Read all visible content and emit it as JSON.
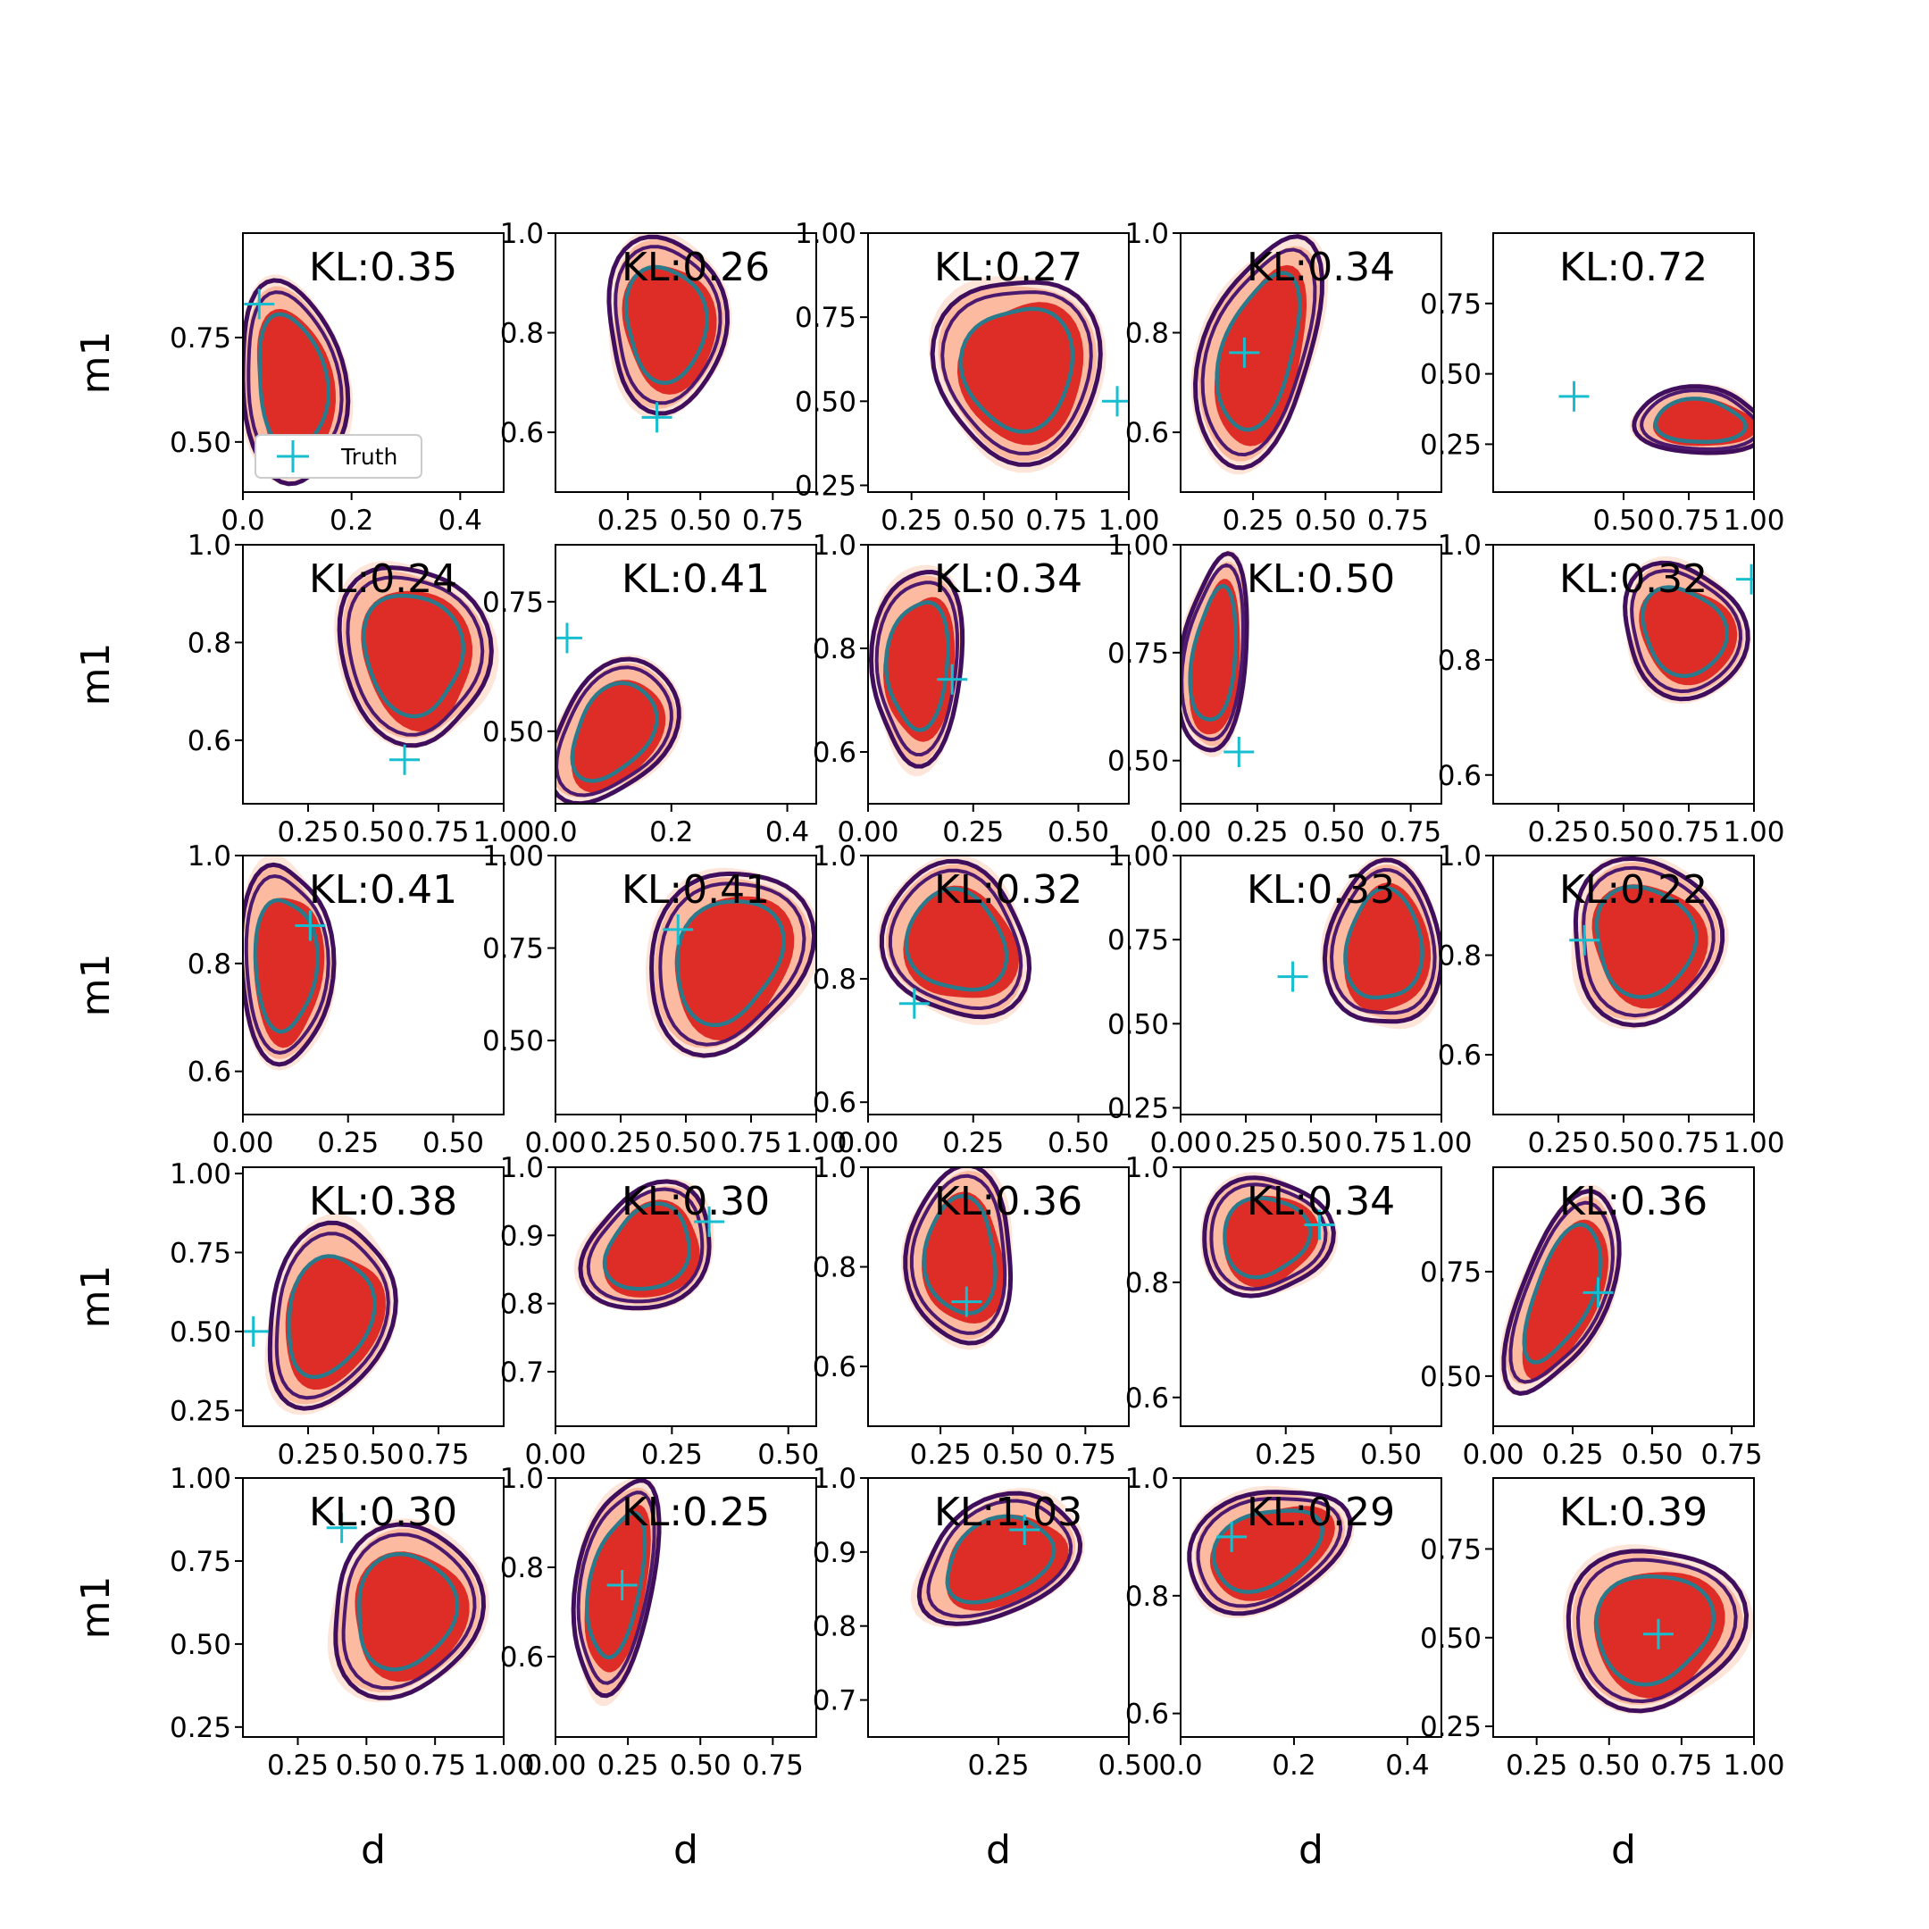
{
  "legend": {
    "label": "Truth"
  },
  "chart_data": {
    "type": "contour-grid",
    "rows": 5,
    "cols": 5,
    "xlabel": "d",
    "ylabel": "m1",
    "colors": {
      "fill_outer": "#fee5d9",
      "fill_mid": "#fcbba1",
      "fill_inner": "#de2d26",
      "contour_outer": "#3f0f5e",
      "contour_mid": "#4b1a6f",
      "contour_inner": "#2b7a8c",
      "truth": "#17becf"
    },
    "panels": [
      {
        "kl": "KL:0.35",
        "xlim": [
          0.0,
          0.48
        ],
        "ylim": [
          0.38,
          1.0
        ],
        "xticks": [
          "0.0",
          "0.2",
          "0.4"
        ],
        "yticks": [
          "0.50",
          "0.75"
        ],
        "truth": [
          0.03,
          0.83
        ],
        "center": [
          0.09,
          0.64
        ],
        "spread": [
          0.09,
          0.23
        ],
        "rot": -10
      },
      {
        "kl": "KL:0.26",
        "xlim": [
          0.0,
          0.9
        ],
        "ylim": [
          0.48,
          1.0
        ],
        "xticks": [
          "0.25",
          "0.50",
          "0.75"
        ],
        "yticks": [
          "0.6",
          "0.8",
          "1.0"
        ],
        "truth": [
          0.35,
          0.63
        ],
        "center": [
          0.38,
          0.82
        ],
        "spread": [
          0.2,
          0.16
        ],
        "rot": 0
      },
      {
        "kl": "KL:0.27",
        "xlim": [
          0.1,
          1.0
        ],
        "ylim": [
          0.23,
          1.0
        ],
        "xticks": [
          "0.25",
          "0.50",
          "0.75",
          "1.00"
        ],
        "yticks": [
          "0.25",
          "0.50",
          "0.75",
          "1.00"
        ],
        "truth": [
          0.96,
          0.5
        ],
        "center": [
          0.62,
          0.6
        ],
        "spread": [
          0.26,
          0.27
        ],
        "rot": 0
      },
      {
        "kl": "KL:0.34",
        "xlim": [
          0.0,
          0.9
        ],
        "ylim": [
          0.48,
          1.0
        ],
        "xticks": [
          "0.25",
          "0.50",
          "0.75"
        ],
        "yticks": [
          "0.6",
          "0.8",
          "1.0"
        ],
        "truth": [
          0.22,
          0.76
        ],
        "center": [
          0.27,
          0.76
        ],
        "spread": [
          0.18,
          0.22
        ],
        "rot": 15
      },
      {
        "kl": "KL:0.72",
        "xlim": [
          0.0,
          1.0
        ],
        "ylim": [
          0.08,
          1.0
        ],
        "xticks": [
          "0.50",
          "0.75",
          "1.00"
        ],
        "yticks": [
          "0.25",
          "0.50",
          "0.75"
        ],
        "truth": [
          0.31,
          0.42
        ],
        "center": [
          0.79,
          0.33
        ],
        "spread": [
          0.24,
          0.11
        ],
        "rot": 0
      },
      {
        "kl": "KL:0.24",
        "xlim": [
          0.0,
          1.0
        ],
        "ylim": [
          0.47,
          1.0
        ],
        "xticks": [
          "0.25",
          "0.50",
          "0.75",
          "1.00"
        ],
        "yticks": [
          "0.6",
          "0.8",
          "1.0"
        ],
        "truth": [
          0.62,
          0.56
        ],
        "center": [
          0.65,
          0.78
        ],
        "spread": [
          0.26,
          0.18
        ],
        "rot": -20
      },
      {
        "kl": "KL:0.41",
        "xlim": [
          0.0,
          0.45
        ],
        "ylim": [
          0.36,
          0.86
        ],
        "xticks": [
          "0.0",
          "0.2",
          "0.4"
        ],
        "yticks": [
          "0.50",
          "0.75"
        ],
        "truth": [
          0.02,
          0.68
        ],
        "center": [
          0.1,
          0.5
        ],
        "spread": [
          0.09,
          0.14
        ],
        "rot": 35
      },
      {
        "kl": "KL:0.34",
        "xlim": [
          0.0,
          0.62
        ],
        "ylim": [
          0.5,
          1.0
        ],
        "xticks": [
          "0.00",
          "0.25",
          "0.50"
        ],
        "yticks": [
          "0.6",
          "0.8",
          "1.0"
        ],
        "truth": [
          0.2,
          0.74
        ],
        "center": [
          0.12,
          0.77
        ],
        "spread": [
          0.1,
          0.18
        ],
        "rot": 5
      },
      {
        "kl": "KL:0.50",
        "xlim": [
          0.0,
          0.85
        ],
        "ylim": [
          0.4,
          1.0
        ],
        "xticks": [
          "0.00",
          "0.25",
          "0.50",
          "0.75"
        ],
        "yticks": [
          "0.50",
          "0.75",
          "1.00"
        ],
        "truth": [
          0.19,
          0.52
        ],
        "center": [
          0.11,
          0.74
        ],
        "spread": [
          0.1,
          0.22
        ],
        "rot": 5
      },
      {
        "kl": "KL:0.32",
        "xlim": [
          0.0,
          1.0
        ],
        "ylim": [
          0.55,
          1.0
        ],
        "xticks": [
          "0.25",
          "0.50",
          "0.75",
          "1.00"
        ],
        "yticks": [
          "0.6",
          "0.8",
          "1.0"
        ],
        "truth": [
          0.99,
          0.94
        ],
        "center": [
          0.73,
          0.85
        ],
        "spread": [
          0.22,
          0.11
        ],
        "rot": -25
      },
      {
        "kl": "KL:0.41",
        "xlim": [
          0.0,
          0.62
        ],
        "ylim": [
          0.52,
          1.0
        ],
        "xticks": [
          "0.00",
          "0.25",
          "0.50"
        ],
        "yticks": [
          "0.6",
          "0.8",
          "1.0"
        ],
        "truth": [
          0.16,
          0.87
        ],
        "center": [
          0.1,
          0.8
        ],
        "spread": [
          0.1,
          0.18
        ],
        "rot": 0
      },
      {
        "kl": "KL:0.41",
        "xlim": [
          0.0,
          1.0
        ],
        "ylim": [
          0.3,
          1.0
        ],
        "xticks": [
          "0.00",
          "0.25",
          "0.50",
          "0.75",
          "1.00"
        ],
        "yticks": [
          "0.50",
          "0.75",
          "1.00"
        ],
        "truth": [
          0.47,
          0.8
        ],
        "center": [
          0.66,
          0.72
        ],
        "spread": [
          0.28,
          0.24
        ],
        "rot": 20
      },
      {
        "kl": "KL:0.32",
        "xlim": [
          0.0,
          0.62
        ],
        "ylim": [
          0.58,
          1.0
        ],
        "xticks": [
          "0.00",
          "0.25",
          "0.50"
        ],
        "yticks": [
          "0.6",
          "0.8",
          "1.0"
        ],
        "truth": [
          0.11,
          0.76
        ],
        "center": [
          0.21,
          0.86
        ],
        "spread": [
          0.16,
          0.12
        ],
        "rot": -20
      },
      {
        "kl": "KL:0.33",
        "xlim": [
          0.0,
          1.0
        ],
        "ylim": [
          0.23,
          1.0
        ],
        "xticks": [
          "0.00",
          "0.25",
          "0.50",
          "0.75",
          "1.00"
        ],
        "yticks": [
          "0.25",
          "0.50",
          "0.75",
          "1.00"
        ],
        "truth": [
          0.43,
          0.64
        ],
        "center": [
          0.78,
          0.73
        ],
        "spread": [
          0.2,
          0.24
        ],
        "rot": 0
      },
      {
        "kl": "KL:0.22",
        "xlim": [
          0.0,
          1.0
        ],
        "ylim": [
          0.48,
          1.0
        ],
        "xticks": [
          "0.25",
          "0.50",
          "0.75",
          "1.00"
        ],
        "yticks": [
          "0.6",
          "0.8",
          "1.0"
        ],
        "truth": [
          0.35,
          0.83
        ],
        "center": [
          0.58,
          0.83
        ],
        "spread": [
          0.28,
          0.15
        ],
        "rot": -15
      },
      {
        "kl": "KL:0.38",
        "xlim": [
          0.0,
          1.0
        ],
        "ylim": [
          0.2,
          1.02
        ],
        "xticks": [
          "0.25",
          "0.50",
          "0.75"
        ],
        "yticks": [
          "0.25",
          "0.50",
          "0.75",
          "1.00"
        ],
        "truth": [
          0.04,
          0.5
        ],
        "center": [
          0.33,
          0.55
        ],
        "spread": [
          0.22,
          0.28
        ],
        "rot": 20
      },
      {
        "kl": "KL:0.30",
        "xlim": [
          0.0,
          0.56
        ],
        "ylim": [
          0.62,
          1.0
        ],
        "xticks": [
          "0.00",
          "0.25",
          "0.50"
        ],
        "yticks": [
          "0.7",
          "0.8",
          "0.9",
          "1.0"
        ],
        "truth": [
          0.33,
          0.92
        ],
        "center": [
          0.2,
          0.88
        ],
        "spread": [
          0.14,
          0.08
        ],
        "rot": -35
      },
      {
        "kl": "KL:0.36",
        "xlim": [
          0.0,
          0.9
        ],
        "ylim": [
          0.48,
          1.0
        ],
        "xticks": [
          "0.25",
          "0.50",
          "0.75"
        ],
        "yticks": [
          "0.6",
          "0.8",
          "1.0"
        ],
        "truth": [
          0.34,
          0.73
        ],
        "center": [
          0.32,
          0.82
        ],
        "spread": [
          0.18,
          0.16
        ],
        "rot": 0
      },
      {
        "kl": "KL:0.34",
        "xlim": [
          0.0,
          0.62
        ],
        "ylim": [
          0.55,
          1.0
        ],
        "xticks": [
          "0.25",
          "0.50"
        ],
        "yticks": [
          "0.6",
          "0.8",
          "1.0"
        ],
        "truth": [
          0.33,
          0.9
        ],
        "center": [
          0.2,
          0.88
        ],
        "spread": [
          0.14,
          0.1
        ],
        "rot": -25
      },
      {
        "kl": "KL:0.36",
        "xlim": [
          0.0,
          0.82
        ],
        "ylim": [
          0.38,
          1.0
        ],
        "xticks": [
          "0.00",
          "0.25",
          "0.50",
          "0.75"
        ],
        "yticks": [
          "0.50",
          "0.75"
        ],
        "truth": [
          0.33,
          0.7
        ],
        "center": [
          0.22,
          0.7
        ],
        "spread": [
          0.13,
          0.24
        ],
        "rot": 20
      },
      {
        "kl": "KL:0.30",
        "xlim": [
          0.05,
          1.0
        ],
        "ylim": [
          0.22,
          1.0
        ],
        "xticks": [
          "0.25",
          "0.50",
          "0.75",
          "1.00"
        ],
        "yticks": [
          "0.25",
          "0.50",
          "0.75",
          "1.00"
        ],
        "truth": [
          0.41,
          0.85
        ],
        "center": [
          0.64,
          0.6
        ],
        "spread": [
          0.26,
          0.24
        ],
        "rot": 30
      },
      {
        "kl": "KL:0.25",
        "xlim": [
          0.0,
          0.9
        ],
        "ylim": [
          0.42,
          1.0
        ],
        "xticks": [
          "0.00",
          "0.25",
          "0.50",
          "0.75"
        ],
        "yticks": [
          "0.6",
          "0.8",
          "1.0"
        ],
        "truth": [
          0.23,
          0.76
        ],
        "center": [
          0.21,
          0.76
        ],
        "spread": [
          0.12,
          0.24
        ],
        "rot": 10
      },
      {
        "kl": "KL:1.03",
        "xlim": [
          0.0,
          0.5
        ],
        "ylim": [
          0.65,
          1.0
        ],
        "xticks": [
          "0.25",
          "0.50"
        ],
        "yticks": [
          "0.7",
          "0.8",
          "0.9",
          "1.0"
        ],
        "truth": [
          0.3,
          0.93
        ],
        "center": [
          0.25,
          0.89
        ],
        "spread": [
          0.16,
          0.07
        ],
        "rot": -25
      },
      {
        "kl": "KL:0.29",
        "xlim": [
          0.0,
          0.46
        ],
        "ylim": [
          0.56,
          1.0
        ],
        "xticks": [
          "0.0",
          "0.2",
          "0.4"
        ],
        "yticks": [
          "0.6",
          "0.8",
          "1.0"
        ],
        "truth": [
          0.09,
          0.9
        ],
        "center": [
          0.15,
          0.88
        ],
        "spread": [
          0.14,
          0.09
        ],
        "rot": -30
      },
      {
        "kl": "KL:0.39",
        "xlim": [
          0.1,
          1.0
        ],
        "ylim": [
          0.22,
          0.95
        ],
        "xticks": [
          "0.25",
          "0.50",
          "0.75",
          "1.00"
        ],
        "yticks": [
          "0.25",
          "0.50",
          "0.75"
        ],
        "truth": [
          0.67,
          0.51
        ],
        "center": [
          0.65,
          0.53
        ],
        "spread": [
          0.28,
          0.22
        ],
        "rot": 0
      }
    ]
  }
}
